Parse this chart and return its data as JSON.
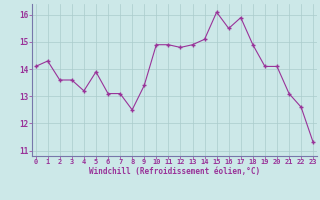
{
  "hours": [
    0,
    1,
    2,
    3,
    4,
    5,
    6,
    7,
    8,
    9,
    10,
    11,
    12,
    13,
    14,
    15,
    16,
    17,
    18,
    19,
    20,
    21,
    22,
    23
  ],
  "values": [
    14.1,
    14.3,
    13.6,
    13.6,
    13.2,
    13.9,
    13.1,
    13.1,
    12.5,
    13.4,
    14.9,
    14.9,
    14.8,
    14.9,
    15.1,
    16.1,
    15.5,
    15.9,
    14.9,
    14.1,
    14.1,
    13.1,
    12.6,
    11.3
  ],
  "line_color": "#993399",
  "marker_color": "#993399",
  "bg_color": "#cce8e8",
  "grid_color": "#aacccc",
  "border_color": "#7777aa",
  "xlabel": "Windchill (Refroidissement éolien,°C)",
  "xlabel_color": "#993399",
  "tick_color": "#993399",
  "ylim": [
    10.8,
    16.4
  ],
  "yticks": [
    11,
    12,
    13,
    14,
    15,
    16
  ],
  "xlim": [
    -0.3,
    23.3
  ],
  "figsize": [
    3.2,
    2.0
  ],
  "dpi": 100
}
